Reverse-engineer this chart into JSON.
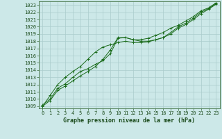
{
  "title": "Graphe pression niveau de la mer (hPa)",
  "bg_color": "#cce8e8",
  "grid_color": "#aacccc",
  "line_color": "#1a6b1a",
  "marker_color": "#1a6b1a",
  "xlim": [
    -0.5,
    23.5
  ],
  "ylim": [
    1008.7,
    1023.5
  ],
  "xticks": [
    0,
    1,
    2,
    3,
    4,
    5,
    6,
    7,
    8,
    9,
    10,
    11,
    12,
    13,
    14,
    15,
    16,
    17,
    18,
    19,
    20,
    21,
    22,
    23
  ],
  "yticks": [
    1009,
    1010,
    1011,
    1012,
    1013,
    1014,
    1015,
    1016,
    1017,
    1018,
    1019,
    1020,
    1021,
    1022,
    1023
  ],
  "line1": [
    1009.2,
    1010.0,
    1011.5,
    1012.1,
    1013.0,
    1013.8,
    1014.2,
    1014.8,
    1015.3,
    1016.3,
    1018.4,
    1018.5,
    1018.2,
    1018.0,
    1018.0,
    1018.2,
    1018.5,
    1019.2,
    1020.0,
    1020.5,
    1021.2,
    1022.0,
    1022.5,
    1023.2
  ],
  "line2": [
    1009.0,
    1009.8,
    1011.2,
    1011.8,
    1012.5,
    1013.2,
    1013.8,
    1014.5,
    1015.5,
    1016.8,
    1018.5,
    1018.5,
    1018.2,
    1018.2,
    1018.4,
    1018.8,
    1019.2,
    1019.8,
    1020.2,
    1020.8,
    1021.4,
    1022.2,
    1022.6,
    1023.3
  ],
  "line3": [
    1009.0,
    1010.5,
    1012.0,
    1013.0,
    1013.8,
    1014.5,
    1015.5,
    1016.5,
    1017.2,
    1017.5,
    1017.8,
    1018.0,
    1017.8,
    1017.8,
    1017.9,
    1018.2,
    1018.5,
    1019.0,
    1019.8,
    1020.3,
    1021.0,
    1021.8,
    1022.4,
    1023.1
  ],
  "tick_fontsize": 5,
  "label_fontsize": 6,
  "linewidth": 0.7,
  "markersize": 2.5
}
